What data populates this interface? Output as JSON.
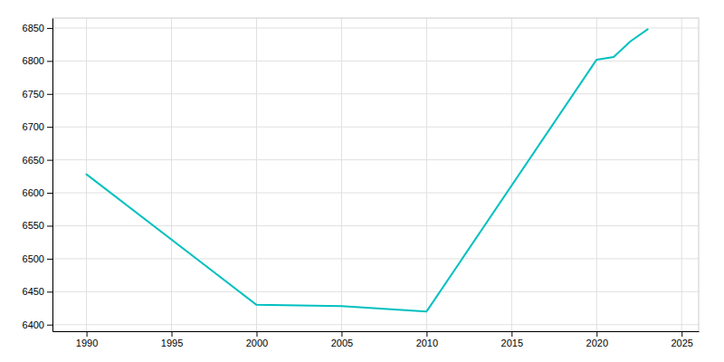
{
  "chart_data": {
    "type": "line",
    "x": [
      1990,
      2000,
      2005,
      2010,
      2020,
      2021,
      2022,
      2023
    ],
    "values": [
      6628,
      6430,
      6428,
      6420,
      6802,
      6806,
      6830,
      6848
    ],
    "color": "#00C0C0",
    "xlim": [
      1988,
      2026
    ],
    "ylim": [
      6390,
      6865
    ],
    "xticks": [
      1990,
      1995,
      2000,
      2005,
      2010,
      2015,
      2020,
      2025
    ],
    "yticks": [
      6400,
      6450,
      6500,
      6550,
      6600,
      6650,
      6700,
      6750,
      6800,
      6850
    ],
    "grid": true
  }
}
